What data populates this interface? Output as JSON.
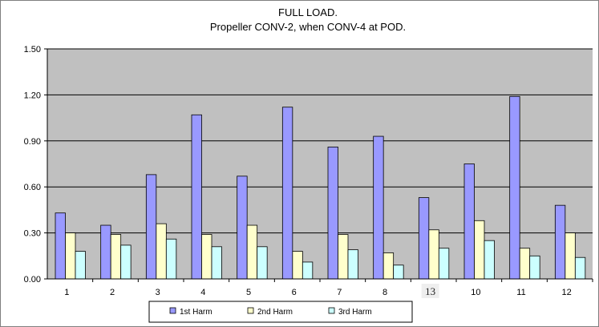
{
  "chart_data": {
    "type": "bar",
    "title": "FULL LOAD.",
    "subtitle": "Propeller CONV-2, when CONV-4 at POD.",
    "categories": [
      "1",
      "2",
      "3",
      "4",
      "5",
      "6",
      "7",
      "8",
      "13",
      "10",
      "11",
      "12"
    ],
    "series": [
      {
        "name": "1st Harm",
        "color": "#9999ff",
        "values": [
          0.43,
          0.35,
          0.68,
          1.07,
          0.67,
          1.12,
          0.86,
          0.93,
          0.53,
          0.75,
          1.19,
          0.48
        ]
      },
      {
        "name": "2nd Harm",
        "color": "#ffffcc",
        "values": [
          0.3,
          0.29,
          0.36,
          0.29,
          0.35,
          0.18,
          0.29,
          0.17,
          0.32,
          0.38,
          0.2,
          0.3
        ]
      },
      {
        "name": "3rd Harm",
        "color": "#ccffff",
        "values": [
          0.18,
          0.22,
          0.26,
          0.21,
          0.21,
          0.11,
          0.19,
          0.09,
          0.2,
          0.25,
          0.15,
          0.14
        ]
      }
    ],
    "ylim": [
      0,
      1.5
    ],
    "yticks": [
      "0.00",
      "0.30",
      "0.60",
      "0.90",
      "1.20",
      "1.50"
    ],
    "grid": true,
    "legend_position": "bottom",
    "plot_background": "#c0c0c0"
  }
}
